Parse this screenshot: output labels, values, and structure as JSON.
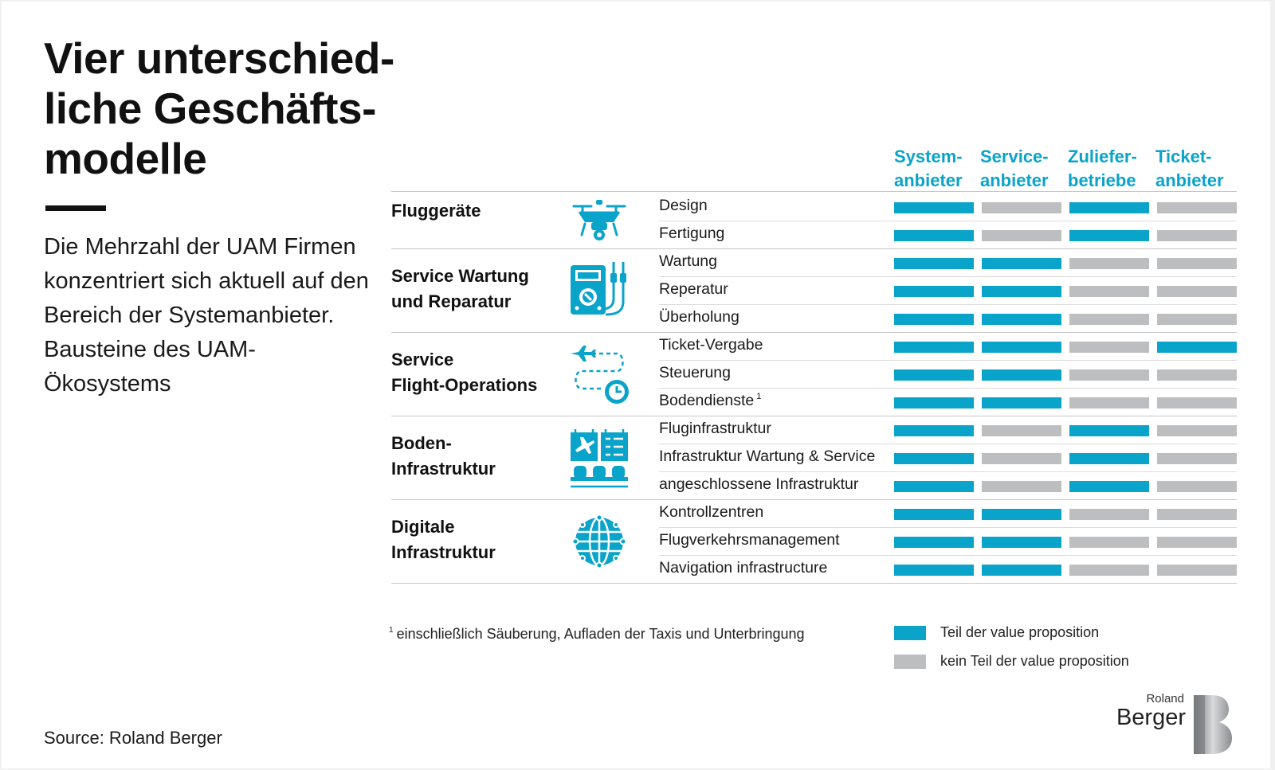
{
  "title": "Vier unterschied-\nliche Geschäfts-\nmodelle",
  "subtitle": "Die Mehrzahl der UAM Firmen konzentriert sich aktuell auf den Bereich der Systemanbieter. Bausteine des UAM-Ökosystems",
  "source": "Source: Roland Berger",
  "colors": {
    "accent": "#0aa3c9",
    "teil": "#0aa3c9",
    "kein": "#bdbec0",
    "text": "#1a1a1a"
  },
  "chart_data": {
    "type": "table",
    "columns": [
      "System-\nanbieter",
      "Service-\nanbieter",
      "Zuliefer-\nbetriebe",
      "Ticket-\nanbieter"
    ],
    "categories": [
      {
        "name": "Fluggeräte",
        "icon": "drone-icon",
        "rows": [
          {
            "label": "Design",
            "values": [
              1,
              0,
              1,
              0
            ]
          },
          {
            "label": "Fertigung",
            "values": [
              1,
              0,
              1,
              0
            ]
          }
        ]
      },
      {
        "name": "Service Wartung\nund Reparatur",
        "icon": "multimeter-icon",
        "rows": [
          {
            "label": "Wartung",
            "values": [
              1,
              1,
              0,
              0
            ]
          },
          {
            "label": "Reperatur",
            "values": [
              1,
              1,
              0,
              0
            ]
          },
          {
            "label": "Überholung",
            "values": [
              1,
              1,
              0,
              0
            ]
          }
        ]
      },
      {
        "name": "Service\nFlight-Operations",
        "icon": "flight-route-clock-icon",
        "rows": [
          {
            "label": "Ticket-Vergabe",
            "values": [
              1,
              1,
              0,
              1
            ]
          },
          {
            "label": "Steuerung",
            "values": [
              1,
              1,
              0,
              0
            ]
          },
          {
            "label": "Bodendienste",
            "footnote": "1",
            "values": [
              1,
              1,
              0,
              0
            ]
          }
        ]
      },
      {
        "name": "Boden-\nInfrastruktur",
        "icon": "airport-terminal-icon",
        "rows": [
          {
            "label": "Fluginfrastruktur",
            "values": [
              1,
              0,
              1,
              0
            ]
          },
          {
            "label": "Infrastruktur Wartung & Service",
            "values": [
              1,
              0,
              1,
              0
            ]
          },
          {
            "label": "angeschlossene Infrastruktur",
            "values": [
              1,
              0,
              1,
              0
            ]
          }
        ]
      },
      {
        "name": "Digitale\nInfrastruktur",
        "icon": "globe-network-icon",
        "rows": [
          {
            "label": "Kontrollzentren",
            "values": [
              1,
              1,
              0,
              0
            ]
          },
          {
            "label": "Flugverkehrsmanagement",
            "values": [
              1,
              1,
              0,
              0
            ]
          },
          {
            "label": "Navigation infrastructure",
            "values": [
              1,
              1,
              0,
              0
            ]
          }
        ]
      }
    ],
    "legend": [
      {
        "key": "teil",
        "label": "Teil der value proposition"
      },
      {
        "key": "kein",
        "label": "kein Teil der value proposition"
      }
    ],
    "footnote": {
      "mark": "1",
      "text": "einschließlich Säuberung, Aufladen der Taxis und Unterbringung"
    }
  },
  "logo": {
    "small": "Roland",
    "big": "Berger"
  }
}
